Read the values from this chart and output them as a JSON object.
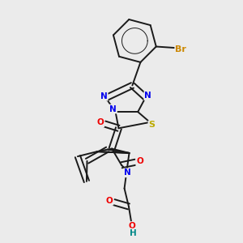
{
  "bg_color": "#ebebeb",
  "bond_color": "#1a1a1a",
  "bond_width": 1.4,
  "dbo": 0.012,
  "atoms": {
    "N": "#0000ee",
    "O": "#ee0000",
    "S": "#bbaa00",
    "Br": "#cc8800",
    "H": "#008888",
    "C": "#1a1a1a"
  },
  "fs": 7.5
}
